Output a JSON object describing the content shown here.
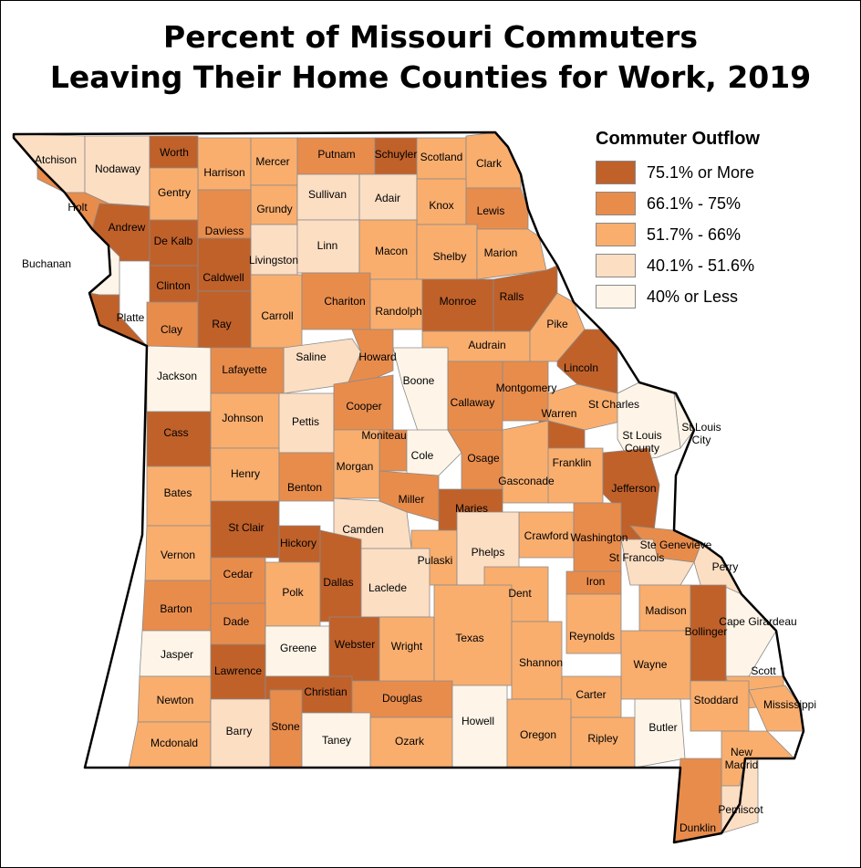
{
  "title": {
    "line1": "Percent of Missouri Commuters",
    "line2": "Leaving Their Home Counties for Work, 2019"
  },
  "legend": {
    "title": "Commuter Outflow",
    "classes": [
      {
        "label": "75.1% or More",
        "color": "#C0612A"
      },
      {
        "label": "66.1% - 75%",
        "color": "#E88C4C"
      },
      {
        "label": "51.7% - 66%",
        "color": "#F9AE6E"
      },
      {
        "label": "40.1% - 51.6%",
        "color": "#FCDEC3"
      },
      {
        "label": "40% or Less",
        "color": "#FEF5E8"
      }
    ]
  },
  "counties": [
    {
      "name": "Atchison",
      "class": 4
    },
    {
      "name": "Nodaway",
      "class": 4
    },
    {
      "name": "Worth",
      "class": 1
    },
    {
      "name": "Harrison",
      "class": 3
    },
    {
      "name": "Mercer",
      "class": 3
    },
    {
      "name": "Putnam",
      "class": 2
    },
    {
      "name": "Schuyler",
      "class": 1
    },
    {
      "name": "Scotland",
      "class": 3
    },
    {
      "name": "Clark",
      "class": 3
    },
    {
      "name": "Holt",
      "class": 2
    },
    {
      "name": "Gentry",
      "class": 3
    },
    {
      "name": "Grundy",
      "class": 3
    },
    {
      "name": "Sullivan",
      "class": 4
    },
    {
      "name": "Adair",
      "class": 4
    },
    {
      "name": "Knox",
      "class": 3
    },
    {
      "name": "Lewis",
      "class": 2
    },
    {
      "name": "Andrew",
      "class": 1
    },
    {
      "name": "De Kalb",
      "class": 1
    },
    {
      "name": "Daviess",
      "class": 2
    },
    {
      "name": "Livingston",
      "class": 4
    },
    {
      "name": "Linn",
      "class": 4
    },
    {
      "name": "Macon",
      "class": 3
    },
    {
      "name": "Shelby",
      "class": 3
    },
    {
      "name": "Marion",
      "class": 3
    },
    {
      "name": "Buchanan",
      "class": 5
    },
    {
      "name": "Clinton",
      "class": 1
    },
    {
      "name": "Caldwell",
      "class": 1
    },
    {
      "name": "Carroll",
      "class": 3
    },
    {
      "name": "Chariton",
      "class": 2
    },
    {
      "name": "Randolph",
      "class": 3
    },
    {
      "name": "Monroe",
      "class": 1
    },
    {
      "name": "Ralls",
      "class": 1
    },
    {
      "name": "Platte",
      "class": 1
    },
    {
      "name": "Clay",
      "class": 2
    },
    {
      "name": "Ray",
      "class": 1
    },
    {
      "name": "Saline",
      "class": 4
    },
    {
      "name": "Howard",
      "class": 2
    },
    {
      "name": "Audrain",
      "class": 3
    },
    {
      "name": "Pike",
      "class": 3
    },
    {
      "name": "Lincoln",
      "class": 1
    },
    {
      "name": "Jackson",
      "class": 5
    },
    {
      "name": "Lafayette",
      "class": 2
    },
    {
      "name": "Boone",
      "class": 5
    },
    {
      "name": "Callaway",
      "class": 2
    },
    {
      "name": "Montgomery",
      "class": 2
    },
    {
      "name": "St Charles",
      "class": 3
    },
    {
      "name": "Johnson",
      "class": 3
    },
    {
      "name": "Pettis",
      "class": 4
    },
    {
      "name": "Cooper",
      "class": 2
    },
    {
      "name": "Warren",
      "class": 1
    },
    {
      "name": "St Louis City",
      "class": 5
    },
    {
      "name": "St Louis County",
      "class": 5
    },
    {
      "name": "Cass",
      "class": 1
    },
    {
      "name": "Moniteau",
      "class": 2
    },
    {
      "name": "Cole",
      "class": 5
    },
    {
      "name": "Osage",
      "class": 2
    },
    {
      "name": "Franklin",
      "class": 3
    },
    {
      "name": "Henry",
      "class": 3
    },
    {
      "name": "Morgan",
      "class": 3
    },
    {
      "name": "Gasconade",
      "class": 3
    },
    {
      "name": "Bates",
      "class": 3
    },
    {
      "name": "Benton",
      "class": 2
    },
    {
      "name": "Miller",
      "class": 2
    },
    {
      "name": "Maries",
      "class": 1
    },
    {
      "name": "Jefferson",
      "class": 1
    },
    {
      "name": "St Clair",
      "class": 1
    },
    {
      "name": "Camden",
      "class": 4
    },
    {
      "name": "Crawford",
      "class": 3
    },
    {
      "name": "Washington",
      "class": 2
    },
    {
      "name": "Ste Genevieve",
      "class": 2
    },
    {
      "name": "Vernon",
      "class": 3
    },
    {
      "name": "Hickory",
      "class": 1
    },
    {
      "name": "Pulaski",
      "class": 3
    },
    {
      "name": "Phelps",
      "class": 4
    },
    {
      "name": "St Francois",
      "class": 4
    },
    {
      "name": "Perry",
      "class": 4
    },
    {
      "name": "Cedar",
      "class": 2
    },
    {
      "name": "Polk",
      "class": 3
    },
    {
      "name": "Dallas",
      "class": 1
    },
    {
      "name": "Laclede",
      "class": 4
    },
    {
      "name": "Dent",
      "class": 3
    },
    {
      "name": "Iron",
      "class": 2
    },
    {
      "name": "Madison",
      "class": 3
    },
    {
      "name": "Barton",
      "class": 2
    },
    {
      "name": "Dade",
      "class": 2
    },
    {
      "name": "Cape Girardeau",
      "class": 5
    },
    {
      "name": "Bollinger",
      "class": 1
    },
    {
      "name": "Reynolds",
      "class": 3
    },
    {
      "name": "Jasper",
      "class": 5
    },
    {
      "name": "Greene",
      "class": 5
    },
    {
      "name": "Webster",
      "class": 1
    },
    {
      "name": "Wright",
      "class": 3
    },
    {
      "name": "Texas",
      "class": 3
    },
    {
      "name": "Shannon",
      "class": 3
    },
    {
      "name": "Wayne",
      "class": 3
    },
    {
      "name": "Lawrence",
      "class": 1
    },
    {
      "name": "Scott",
      "class": 3
    },
    {
      "name": "Newton",
      "class": 3
    },
    {
      "name": "Christian",
      "class": 1
    },
    {
      "name": "Douglas",
      "class": 2
    },
    {
      "name": "Carter",
      "class": 3
    },
    {
      "name": "Stoddard",
      "class": 3
    },
    {
      "name": "Mississippi",
      "class": 3
    },
    {
      "name": "Mcdonald",
      "class": 3
    },
    {
      "name": "Barry",
      "class": 4
    },
    {
      "name": "Stone",
      "class": 2
    },
    {
      "name": "Taney",
      "class": 5
    },
    {
      "name": "Ozark",
      "class": 3
    },
    {
      "name": "Howell",
      "class": 5
    },
    {
      "name": "Oregon",
      "class": 3
    },
    {
      "name": "Ripley",
      "class": 3
    },
    {
      "name": "Butler",
      "class": 5
    },
    {
      "name": "New Madrid",
      "class": 3
    },
    {
      "name": "Pemiscot",
      "class": 4
    },
    {
      "name": "Dunklin",
      "class": 2
    }
  ]
}
